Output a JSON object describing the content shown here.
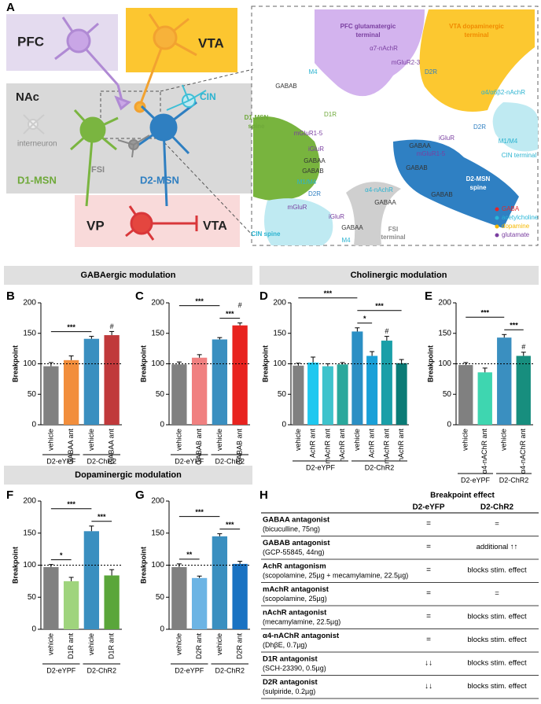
{
  "panels": [
    "A",
    "B",
    "C",
    "D",
    "E",
    "F",
    "G",
    "H"
  ],
  "headers": [
    "GABAergic modulation",
    "Cholinergic modulation",
    "Dopaminergic modulation"
  ],
  "diagram": {
    "regions": [
      "PFC",
      "VTA",
      "NAc",
      "VP",
      "VTA"
    ],
    "cells": [
      "CIN",
      "interneuron",
      "D1-MSN",
      "FSI",
      "D2-MSN"
    ],
    "detail": [
      "PFC glutamatergic",
      "terminal",
      "VTA dopaminergic",
      "terminal",
      "α7-nAchR",
      "mGluR2-3",
      "M4",
      "GABAB",
      "D2R",
      "α4/α6β2-nAchR",
      "D1-MSN",
      "spine",
      "D1R",
      "mGluR1-5",
      "iGluR",
      "GABAA",
      "GABAB",
      "M1/M4",
      "D2R",
      "α4-nAchR",
      "GABAA",
      "mGluR",
      "iGluR",
      "GABAA",
      "M4",
      "CIN spine",
      "FSI",
      "terminal",
      "D2R",
      "M1/M4",
      "mGluR1-5",
      "iGluR",
      "GABAA",
      "GABAB",
      "D2-MSN",
      "spine",
      "CIN terminal",
      "GABAB"
    ],
    "legend": [
      {
        "name": "GABA",
        "color": "#e3262b"
      },
      {
        "name": "acetylcholine",
        "color": "#27b6d8"
      },
      {
        "name": "dopamine",
        "color": "#f5b800"
      },
      {
        "name": "glutamate",
        "color": "#7a3fa0"
      }
    ]
  },
  "chart_data": [
    {
      "type": "bar",
      "ylabel": "Breakpoint",
      "ylim": [
        0,
        200
      ],
      "yticks": [
        0,
        50,
        100,
        150,
        200
      ],
      "refline": 100,
      "categories": [
        "vehicle",
        "GABAA ant",
        "vehicle",
        "GABAA ant"
      ],
      "groups": [
        "D2-eYPF",
        "D2-ChR2"
      ],
      "values": [
        96,
        106,
        141,
        147
      ],
      "errors": [
        6,
        7,
        4,
        6
      ],
      "colors": [
        "#808080",
        "#f28e3c",
        "#3a8fc0",
        "#c0393b"
      ],
      "annotations": [
        {
          "text": "***",
          "bars": [
            0,
            2
          ]
        },
        {
          "text": "#",
          "bars": [
            3
          ]
        }
      ]
    },
    {
      "type": "bar",
      "ylabel": "Breakpoint",
      "ylim": [
        0,
        200
      ],
      "yticks": [
        0,
        50,
        100,
        150,
        200
      ],
      "refline": 100,
      "categories": [
        "vehicle",
        "GABAB ant",
        "vehicle",
        "GABAB ant"
      ],
      "groups": [
        "D2-eYPF",
        "D2-ChR2"
      ],
      "values": [
        99,
        110,
        140,
        163
      ],
      "errors": [
        4,
        5,
        3,
        4
      ],
      "colors": [
        "#808080",
        "#f08080",
        "#3a8fc0",
        "#e8231f"
      ],
      "annotations": [
        {
          "text": "***",
          "bars": [
            2,
            3
          ]
        },
        {
          "text": "***",
          "bars": [
            0,
            2
          ]
        },
        {
          "text": "#",
          "bars": [
            3
          ]
        }
      ]
    },
    {
      "type": "bar",
      "ylabel": "Breakpoint",
      "ylim": [
        0,
        200
      ],
      "yticks": [
        0,
        50,
        100,
        150,
        200
      ],
      "refline": 100,
      "categories": [
        "vehicle",
        "AchR ant",
        "mAchR ant",
        "nAchR ant",
        "vehicle",
        "AchR ant",
        "mAchR ant",
        "nAchR ant"
      ],
      "groups": [
        "D2-eYPF",
        "D2-ChR2"
      ],
      "values": [
        97,
        102,
        96,
        99,
        153,
        113,
        138,
        101
      ],
      "errors": [
        4,
        9,
        4,
        3,
        6,
        7,
        7,
        6
      ],
      "colors": [
        "#808080",
        "#1ec8f0",
        "#3ec3cc",
        "#2aa89c",
        "#2b8fc4",
        "#1aa0d8",
        "#1a9fa8",
        "#0b7b76"
      ],
      "annotations": [
        {
          "text": "#",
          "bars": [
            6
          ]
        },
        {
          "text": "*",
          "bars": [
            4,
            5
          ]
        },
        {
          "text": "***",
          "bars": [
            4,
            7
          ]
        },
        {
          "text": "***",
          "bars": [
            0,
            4
          ]
        }
      ]
    },
    {
      "type": "bar",
      "ylabel": "Breakpoint",
      "ylim": [
        0,
        200
      ],
      "yticks": [
        0,
        50,
        100,
        150,
        200
      ],
      "refline": 100,
      "categories": [
        "vehicle",
        "α4-nAChR ant",
        "vehicle",
        "α4-nAChR ant"
      ],
      "groups": [
        "D2-eYPF",
        "D2-ChR2"
      ],
      "values": [
        98,
        86,
        143,
        113
      ],
      "errors": [
        4,
        7,
        5,
        6
      ],
      "colors": [
        "#808080",
        "#3ed6b0",
        "#3a8fc0",
        "#178e7e"
      ],
      "annotations": [
        {
          "text": "#",
          "bars": [
            3
          ]
        },
        {
          "text": "***",
          "bars": [
            2,
            3
          ]
        },
        {
          "text": "***",
          "bars": [
            0,
            2
          ]
        }
      ]
    },
    {
      "type": "bar",
      "ylabel": "Breakpoint",
      "ylim": [
        0,
        200
      ],
      "yticks": [
        0,
        50,
        100,
        150,
        200
      ],
      "refline": 100,
      "categories": [
        "vehicle",
        "D1R ant",
        "vehicle",
        "D1R ant"
      ],
      "groups": [
        "D2-eYPF",
        "D2-ChR2"
      ],
      "values": [
        97,
        75,
        153,
        84
      ],
      "errors": [
        4,
        6,
        8,
        9
      ],
      "colors": [
        "#808080",
        "#9fd47d",
        "#3a8fc0",
        "#5aa63a"
      ],
      "annotations": [
        {
          "text": "*",
          "bars": [
            0,
            1
          ]
        },
        {
          "text": "***",
          "bars": [
            2,
            3
          ]
        },
        {
          "text": "***",
          "bars": [
            0,
            2
          ]
        }
      ]
    },
    {
      "type": "bar",
      "ylabel": "Breakpoint",
      "ylim": [
        0,
        200
      ],
      "yticks": [
        0,
        50,
        100,
        150,
        200
      ],
      "refline": 100,
      "categories": [
        "vehicle",
        "D2R ant",
        "vehicle",
        "D2R ant"
      ],
      "groups": [
        "D2-eYPF",
        "D2-ChR2"
      ],
      "values": [
        97,
        80,
        145,
        102
      ],
      "errors": [
        5,
        3,
        4,
        4
      ],
      "colors": [
        "#808080",
        "#6cb4e4",
        "#3a8fc0",
        "#1a72c2"
      ],
      "annotations": [
        {
          "text": "**",
          "bars": [
            0,
            1
          ]
        },
        {
          "text": "***",
          "bars": [
            2,
            3
          ]
        },
        {
          "text": "***",
          "bars": [
            0,
            2
          ]
        }
      ]
    }
  ],
  "table": {
    "title": "Breakpoint effect",
    "columns": [
      "D2-eYFP",
      "D2-ChR2"
    ],
    "rows": [
      [
        "GABAA antagonist",
        "(bicuculline, 75ng)",
        "=",
        "="
      ],
      [
        "GABAB antagonist",
        "(GCP-55845, 44ng)",
        "=",
        "additional ↑↑"
      ],
      [
        "AchR antagonism",
        "(scopolamine, 25µg + mecamylamine, 22.5µg)",
        "=",
        "blocks stim. effect"
      ],
      [
        "mAchR antagonist",
        "(scopolamine, 25µg)",
        "=",
        "="
      ],
      [
        "nAchR antagonist",
        "(mecamylamine, 22.5µg)",
        "=",
        "blocks stim. effect"
      ],
      [
        "α4-nAChR antagonist",
        "(DhβE, 0.7µg)",
        "=",
        "blocks stim. effect"
      ],
      [
        "D1R antagonist",
        "(SCH-23390, 0.5µg)",
        "↓↓",
        "blocks stim. effect"
      ],
      [
        "D2R antagonist",
        "(sulpiride, 0.2µg)",
        "↓↓",
        "blocks stim. effect"
      ]
    ]
  }
}
